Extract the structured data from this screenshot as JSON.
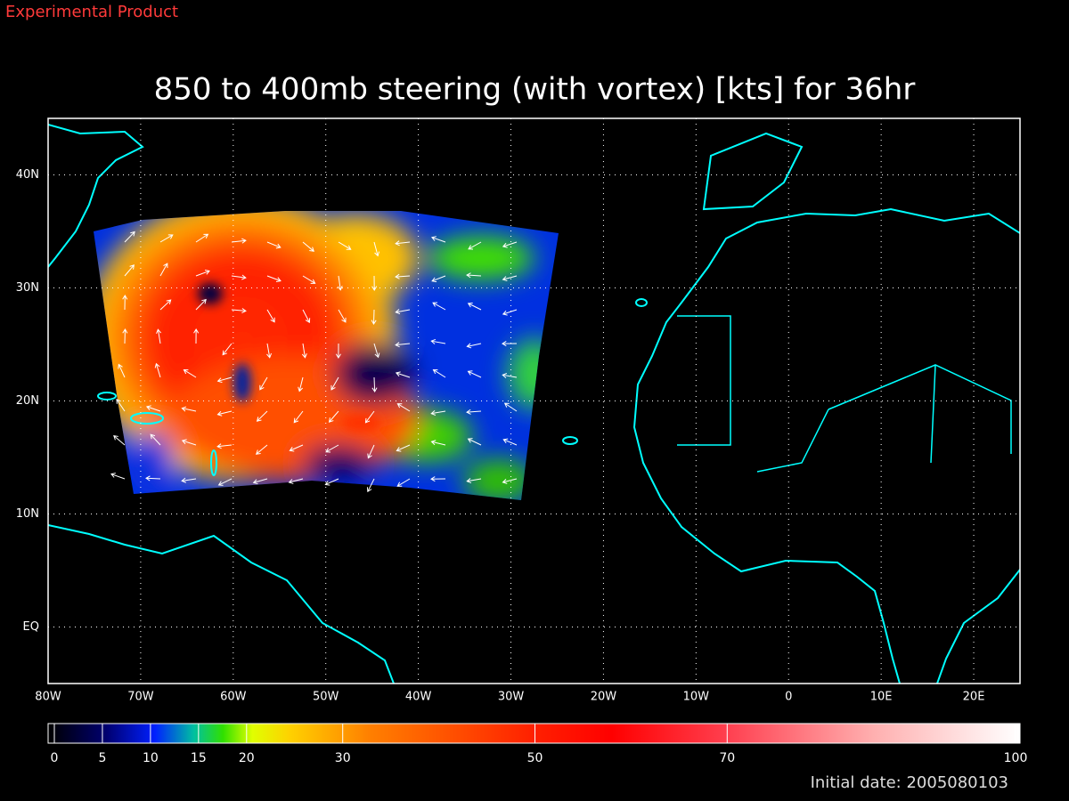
{
  "header": {
    "label": "Experimental Product"
  },
  "map": {
    "title": "850 to 400mb steering (with vortex) [kts] for 36hr",
    "xlim": [
      -80,
      25
    ],
    "xticks": [
      {
        "value": -80,
        "label": "80W"
      },
      {
        "value": -70,
        "label": "70W"
      },
      {
        "value": -60,
        "label": "60W"
      },
      {
        "value": -50,
        "label": "50W"
      },
      {
        "value": -40,
        "label": "40W"
      },
      {
        "value": -30,
        "label": "30W"
      },
      {
        "value": -20,
        "label": "20W"
      },
      {
        "value": -10,
        "label": "10W"
      },
      0,
      {
        "value": 10,
        "label": "10E"
      },
      {
        "value": 20,
        "label": "20E"
      }
    ],
    "ylim": [
      -5,
      45
    ],
    "yticks": [
      {
        "value": 0,
        "label": "EQ"
      },
      {
        "value": 10,
        "label": "10N"
      },
      {
        "value": 20,
        "label": "20N"
      },
      {
        "value": 30,
        "label": "30N"
      },
      {
        "value": 40,
        "label": "40N"
      }
    ],
    "grid": true,
    "colorbar": {
      "range": [
        0,
        100
      ],
      "ticks": [
        0,
        5,
        10,
        15,
        20,
        30,
        50,
        70,
        100
      ]
    }
  },
  "footer": {
    "initial_date": "Initial date: 2005080103"
  }
}
